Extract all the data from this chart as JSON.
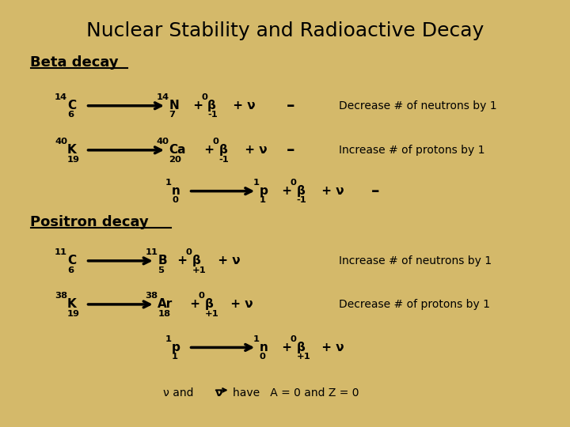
{
  "title": "Nuclear Stability and Radioactive Decay",
  "bg_color": "#D4B96A",
  "title_color": "#000000",
  "title_fontsize": 18,
  "beta_decay_label": "Beta decay",
  "positron_decay_label": "Positron decay"
}
